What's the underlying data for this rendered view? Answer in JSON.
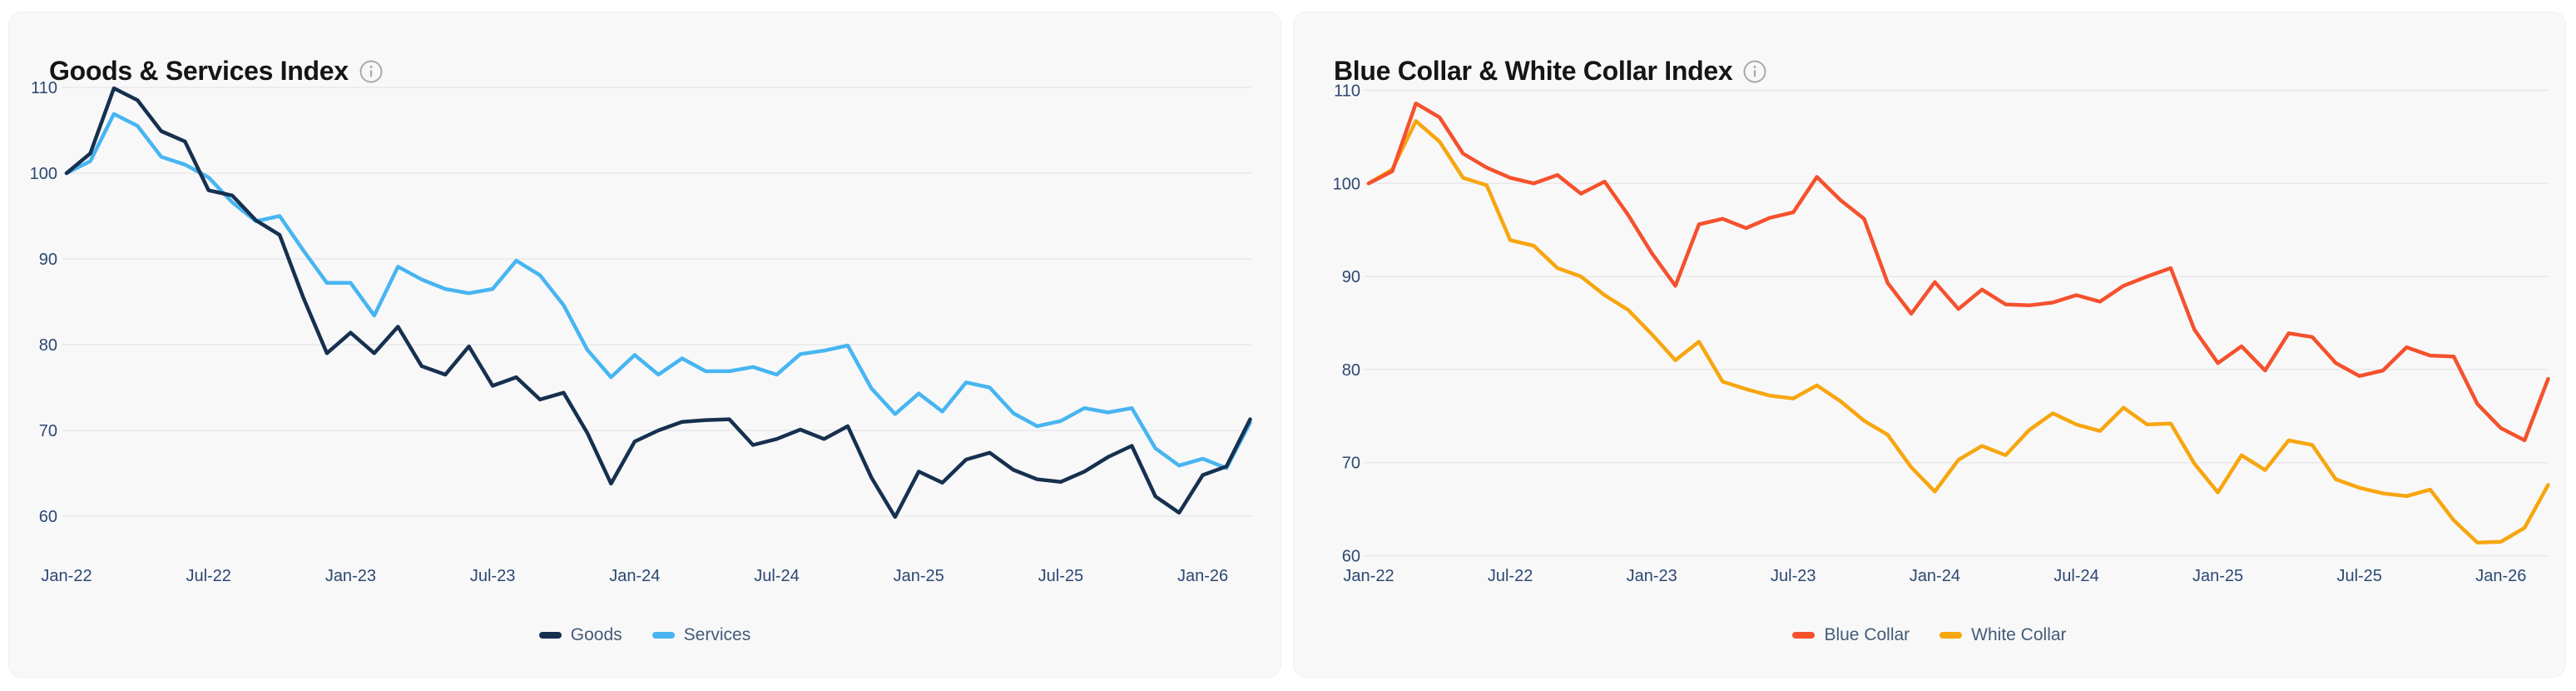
{
  "page": {
    "background_color": "#ffffff",
    "card_background_color": "#f8f8f9"
  },
  "chart_data": [
    {
      "type": "line",
      "title": "Goods & Services Index",
      "info_icon": "info-circle-icon",
      "grid": "horizontal",
      "legend_position": "bottom-center",
      "ylim": [
        60,
        110
      ],
      "y_ticks": [
        110,
        100,
        90,
        80,
        70,
        60
      ],
      "x_tick_labels": [
        "Jan-22",
        "Jul-22",
        "Jan-23",
        "Jul-23",
        "Jan-24",
        "Jul-24",
        "Jan-25",
        "Jul-25",
        "Jan-26"
      ],
      "x": [
        "Jan-22",
        "Feb-22",
        "Mar-22",
        "Apr-22",
        "May-22",
        "Jun-22",
        "Jul-22",
        "Aug-22",
        "Sep-22",
        "Oct-22",
        "Nov-22",
        "Dec-22",
        "Jan-23",
        "Feb-23",
        "Mar-23",
        "Apr-23",
        "May-23",
        "Jun-23",
        "Jul-23",
        "Aug-23",
        "Sep-23",
        "Oct-23",
        "Nov-23",
        "Dec-23",
        "Jan-24",
        "Feb-24",
        "Mar-24",
        "Apr-24",
        "May-24",
        "Jun-24",
        "Jul-24",
        "Aug-24",
        "Sep-24",
        "Oct-24",
        "Nov-24",
        "Dec-24",
        "Jan-25",
        "Feb-25",
        "Mar-25",
        "Apr-25",
        "May-25",
        "Jun-25",
        "Jul-25",
        "Aug-25",
        "Sep-25",
        "Oct-25",
        "Nov-25",
        "Dec-25",
        "Jan-26",
        "Feb-26",
        "Mar-26"
      ],
      "series": [
        {
          "name": "Goods",
          "color": "#16304f",
          "values": [
            100,
            102.3,
            109.9,
            108.5,
            104.9,
            103.7,
            98,
            97.4,
            94.5,
            92.8,
            85.5,
            79,
            81.4,
            79,
            82.1,
            77.5,
            76.5,
            79.8,
            75.2,
            76.2,
            73.6,
            74.4,
            69.7,
            63.8,
            68.7,
            70,
            71,
            71.2,
            71.3,
            68.3,
            69,
            70.1,
            69,
            70.5,
            64.5,
            59.9,
            65.2,
            63.9,
            66.6,
            67.4,
            65.4,
            64.3,
            64,
            65.2,
            66.9,
            68.2,
            62.3,
            60.4,
            64.8,
            65.8,
            71.3
          ]
        },
        {
          "name": "Services",
          "color": "#47b5f1",
          "values": [
            100,
            101.4,
            106.9,
            105.5,
            101.9,
            101,
            99.5,
            96.6,
            94.4,
            95,
            91,
            87.2,
            87.2,
            83.4,
            89.1,
            87.6,
            86.5,
            86,
            86.5,
            89.8,
            88.1,
            84.6,
            79.4,
            76.2,
            78.8,
            76.5,
            78.4,
            76.9,
            76.9,
            77.4,
            76.5,
            78.9,
            79.3,
            79.9,
            74.9,
            71.9,
            74.3,
            72.2,
            75.6,
            75,
            72,
            70.5,
            71.1,
            72.6,
            72.1,
            72.6,
            67.9,
            65.9,
            66.7,
            65.6,
            70.9
          ]
        }
      ]
    },
    {
      "type": "line",
      "title": "Blue Collar & White Collar Index",
      "info_icon": "info-circle-icon",
      "grid": "horizontal",
      "legend_position": "bottom-center",
      "ylim": [
        60,
        110
      ],
      "y_ticks": [
        110,
        100,
        90,
        80,
        70,
        60
      ],
      "x_tick_labels": [
        "Jan-22",
        "Jul-22",
        "Jan-23",
        "Jul-23",
        "Jan-24",
        "Jul-24",
        "Jan-25",
        "Jul-25",
        "Jan-26"
      ],
      "x": [
        "Jan-22",
        "Feb-22",
        "Mar-22",
        "Apr-22",
        "May-22",
        "Jun-22",
        "Jul-22",
        "Aug-22",
        "Sep-22",
        "Oct-22",
        "Nov-22",
        "Dec-22",
        "Jan-23",
        "Feb-23",
        "Mar-23",
        "Apr-23",
        "May-23",
        "Jun-23",
        "Jul-23",
        "Aug-23",
        "Sep-23",
        "Oct-23",
        "Nov-23",
        "Dec-23",
        "Jan-24",
        "Feb-24",
        "Mar-24",
        "Apr-24",
        "May-24",
        "Jun-24",
        "Jul-24",
        "Aug-24",
        "Sep-24",
        "Oct-24",
        "Nov-24",
        "Dec-24",
        "Jan-25",
        "Feb-25",
        "Mar-25",
        "Apr-25",
        "May-25",
        "Jun-25",
        "Jul-25",
        "Aug-25",
        "Sep-25",
        "Oct-25",
        "Nov-25",
        "Dec-25",
        "Jan-26",
        "Feb-26",
        "Mar-26"
      ],
      "series": [
        {
          "name": "Blue Collar",
          "color": "#f5512d",
          "values": [
            100,
            101.3,
            108.6,
            107.1,
            103.2,
            101.7,
            100.6,
            100,
            100.9,
            98.9,
            100.2,
            96.6,
            92.5,
            89,
            95.6,
            96.2,
            95.2,
            96.3,
            96.9,
            100.7,
            98.2,
            96.2,
            89.3,
            86,
            89.4,
            86.5,
            88.6,
            87,
            86.9,
            87.2,
            88,
            87.3,
            89,
            90,
            90.9,
            84.3,
            80.7,
            82.5,
            79.9,
            83.9,
            83.5,
            80.7,
            79.3,
            79.9,
            82.4,
            81.5,
            81.4,
            76.3,
            73.7,
            72.4,
            79
          ]
        },
        {
          "name": "White Collar",
          "color": "#f7a60f",
          "values": [
            100,
            101.5,
            106.7,
            104.5,
            100.6,
            99.8,
            93.9,
            93.3,
            90.9,
            90,
            88,
            86.4,
            83.8,
            81,
            83,
            78.7,
            77.9,
            77.2,
            76.9,
            78.3,
            76.6,
            74.5,
            73,
            69.5,
            66.9,
            70.3,
            71.8,
            70.8,
            73.5,
            75.3,
            74.1,
            73.4,
            75.9,
            74.1,
            74.2,
            69.9,
            66.8,
            70.8,
            69.2,
            72.4,
            71.9,
            68.2,
            67.3,
            66.7,
            66.4,
            67.1,
            63.8,
            61.4,
            61.5,
            63,
            67.6
          ]
        }
      ]
    }
  ]
}
